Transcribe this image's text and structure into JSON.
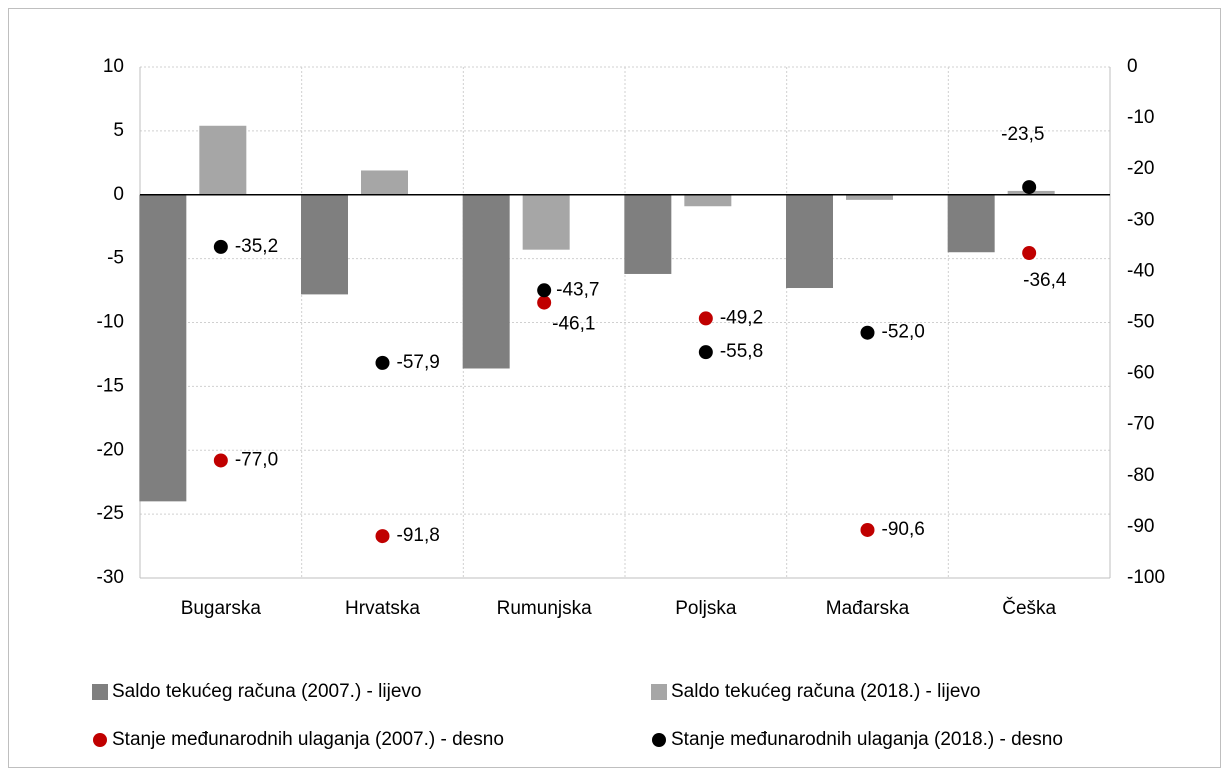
{
  "chart_data": {
    "type": "bar",
    "categories": [
      "Bugarska",
      "Hrvatska",
      "Rumunjska",
      "Poljska",
      "Mađarska",
      "Češka"
    ],
    "series": [
      {
        "name": "Saldo tekućeg računa (2007.) - lijevo",
        "color": "#7f7f7f",
        "type": "bar",
        "values": [
          -24.0,
          -7.8,
          -13.6,
          -6.2,
          -7.3,
          -4.5
        ]
      },
      {
        "name": "Saldo tekućeg računa (2018.) - lijevo",
        "color": "#a6a6a6",
        "type": "bar",
        "values": [
          5.4,
          1.9,
          -4.3,
          -0.9,
          -0.4,
          0.3
        ]
      },
      {
        "name": "Stanje međunarodnih ulaganja (2007.) - desno",
        "color": "#c00000",
        "type": "scatter",
        "axis": "y2",
        "values": [
          -77.0,
          -91.8,
          -46.1,
          -49.2,
          -90.6,
          -36.4
        ],
        "value_labels": [
          "-77,0",
          "-91,8",
          "-46,1",
          "-49,2",
          "-90,6",
          "-36,4"
        ]
      },
      {
        "name": "Stanje međunarodnih ulaganja (2018.) - desno",
        "color": "#000000",
        "type": "scatter",
        "axis": "y2",
        "values": [
          -35.2,
          -57.9,
          -43.7,
          -55.8,
          -52.0,
          -23.5
        ],
        "value_labels": [
          "-35,2",
          "-57,9",
          "-43,7",
          "-55,8",
          "-52,0",
          "-23,5"
        ]
      }
    ],
    "ylim": [
      -30,
      10
    ],
    "yticks": [
      -30,
      -25,
      -20,
      -15,
      -10,
      -5,
      0,
      5,
      10
    ],
    "y2lim": [
      -100,
      0
    ],
    "y2ticks": [
      -100,
      -90,
      -80,
      -70,
      -60,
      -50,
      -40,
      -30,
      -20,
      -10,
      0
    ],
    "grid": true,
    "legend": "bottom"
  }
}
